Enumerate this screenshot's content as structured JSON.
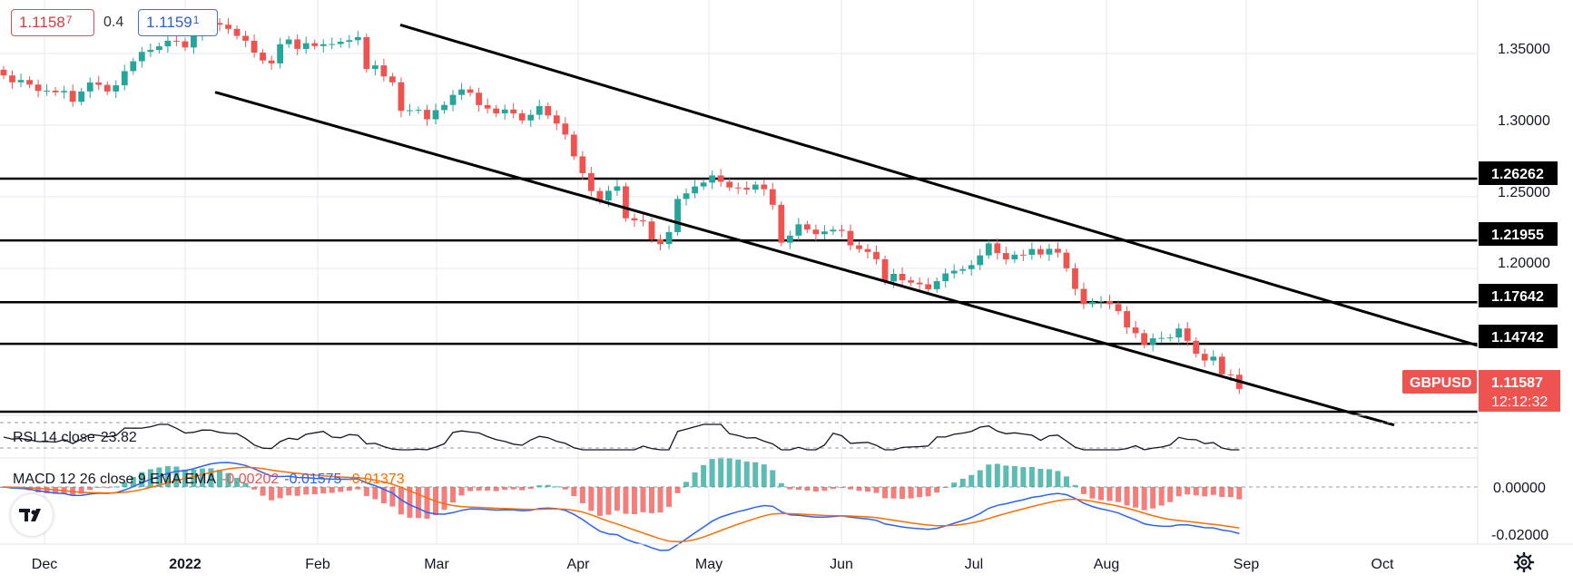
{
  "header": {
    "bid": "1.1158",
    "bid_pip": "7",
    "spread": "0.4",
    "ask": "1.1159",
    "ask_pip": "1"
  },
  "colors": {
    "up": "#26a69a",
    "down": "#ef5350",
    "line": "#000000",
    "grid": "#e6e9ef",
    "macd": "#2962ff",
    "signal": "#ff6d00",
    "symbol_bg": "#ef5350"
  },
  "icons": {
    "logo": "tradingview-logo-icon",
    "settings": "gear-icon"
  },
  "price_axis": {
    "ticks": [
      "1.35000",
      "1.30000",
      "1.25000",
      "1.20000"
    ],
    "level_labels": [
      "1.26262",
      "1.21955",
      "1.17642",
      "1.14742"
    ],
    "symbol": "GBPUSD",
    "last_price": "1.11587",
    "countdown": "12:12:32"
  },
  "macd_axis": {
    "ticks": [
      "0.00000",
      "-0.02000"
    ]
  },
  "time_axis": {
    "ticks": [
      "Dec",
      "2022",
      "Feb",
      "Mar",
      "Apr",
      "May",
      "Jun",
      "Jul",
      "Aug",
      "Sep",
      "Oct"
    ]
  },
  "rsi": {
    "label": "RSI 14 close",
    "value": "23.82"
  },
  "macd": {
    "label": "MACD 12 26 close 9 EMA EMA",
    "hist": "-0.00202",
    "macd": "-0.01575",
    "signal": "-0.01373"
  },
  "chart_data": {
    "type": "candlestick",
    "symbol": "GBPUSD",
    "interval": "1D",
    "x_ticks": [
      "Dec",
      "2022",
      "Feb",
      "Mar",
      "Apr",
      "May",
      "Jun",
      "Jul",
      "Aug",
      "Sep",
      "Oct"
    ],
    "y_ticks": [
      1.35,
      1.3,
      1.25,
      1.2
    ],
    "ylim": [
      1.085,
      1.382
    ],
    "closes": [
      1.3347,
      1.3299,
      1.3315,
      1.3283,
      1.3239,
      1.3241,
      1.3229,
      1.3239,
      1.3163,
      1.3235,
      1.3298,
      1.3281,
      1.3235,
      1.3278,
      1.3377,
      1.3446,
      1.3511,
      1.3525,
      1.355,
      1.3589,
      1.3585,
      1.3542,
      1.3624,
      1.3693,
      1.3713,
      1.3701,
      1.3672,
      1.3623,
      1.3589,
      1.3506,
      1.3451,
      1.3431,
      1.3565,
      1.3598,
      1.3532,
      1.3572,
      1.3552,
      1.3565,
      1.3566,
      1.3582,
      1.3593,
      1.3614,
      1.3392,
      1.3417,
      1.334,
      1.3299,
      1.31,
      1.3104,
      1.3107,
      1.3041,
      1.3105,
      1.3141,
      1.3211,
      1.3249,
      1.3226,
      1.314,
      1.3116,
      1.3082,
      1.3109,
      1.3082,
      1.3033,
      1.3072,
      1.3133,
      1.3068,
      1.3011,
      1.2934,
      1.2782,
      1.2665,
      1.254,
      1.2474,
      1.2542,
      1.2573,
      1.235,
      1.2335,
      1.2328,
      1.2203,
      1.217,
      1.2253,
      1.2485,
      1.2524,
      1.2572,
      1.2599,
      1.2649,
      1.2605,
      1.2565,
      1.2563,
      1.255,
      1.2585,
      1.2553,
      1.2444,
      1.218,
      1.2229,
      1.2308,
      1.2271,
      1.2239,
      1.2258,
      1.227,
      1.2262,
      1.2161,
      1.2135,
      1.2115,
      1.2064,
      1.1909,
      1.1962,
      1.1917,
      1.1901,
      1.1889,
      1.1855,
      1.1911,
      1.1965,
      1.1984,
      1.1995,
      1.2023,
      1.2091,
      1.2175,
      1.2107,
      1.2063,
      1.2096,
      1.2095,
      1.2135,
      1.2097,
      1.2137,
      1.211,
      1.2001,
      1.1857,
      1.1751,
      1.1766,
      1.1772,
      1.1751,
      1.1702,
      1.1588,
      1.1548,
      1.1466,
      1.1512,
      1.1515,
      1.1518,
      1.1581,
      1.1495,
      1.1404,
      1.1357,
      1.1384,
      1.1261,
      1.1258,
      1.1159
    ],
    "levels": [
      1.26262,
      1.21955,
      1.17642,
      1.14742,
      1.1
    ],
    "channel_upper": [
      {
        "date": "Feb 21",
        "price": 1.37
      },
      {
        "date": "Sep 29",
        "price": 1.145
      }
    ],
    "channel_lower": [
      {
        "date": "Jan 10",
        "price": 1.323
      },
      {
        "date": "Sep 30",
        "price": 1.0907
      }
    ],
    "last_price": 1.11587,
    "rsi": {
      "period": 14,
      "value": 23.82
    },
    "macd": {
      "fast": 12,
      "slow": 26,
      "signal": 9,
      "histogram": -0.00202,
      "macd": -0.01575,
      "signal_value": -0.01373
    }
  }
}
